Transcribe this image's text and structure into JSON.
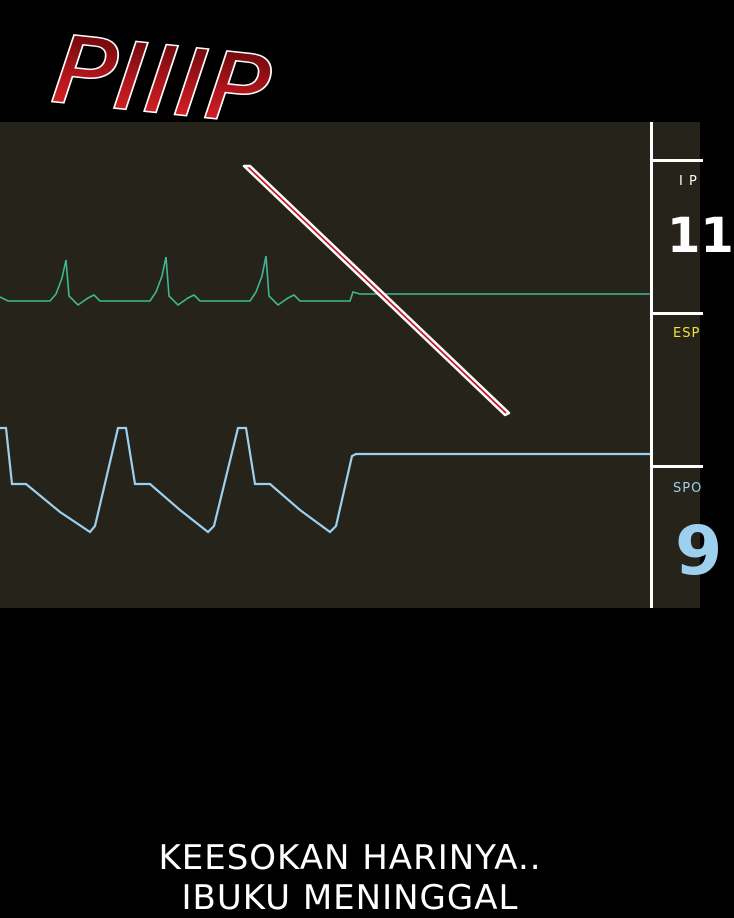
{
  "sound_effect": {
    "text": "PIIIP",
    "color": "#c4161c"
  },
  "monitor": {
    "background": "#25231a",
    "waveforms": {
      "ecg_color": "#3fb892",
      "spo2_color": "#9dd0ef"
    },
    "panels": [
      {
        "label": "I P",
        "value": "11",
        "label_color": "#ffffff",
        "value_color": "#ffffff"
      },
      {
        "label": "ESP",
        "value": "",
        "label_color": "#f0e23c",
        "value_color": "#f0e23c"
      },
      {
        "label": "SPO",
        "value": "9",
        "label_color": "#9dd0ef",
        "value_color": "#9dd0ef"
      }
    ]
  },
  "caption": {
    "line1": "KEESOKAN HARINYA..",
    "line2": "IBUKU MENINGGAL"
  }
}
